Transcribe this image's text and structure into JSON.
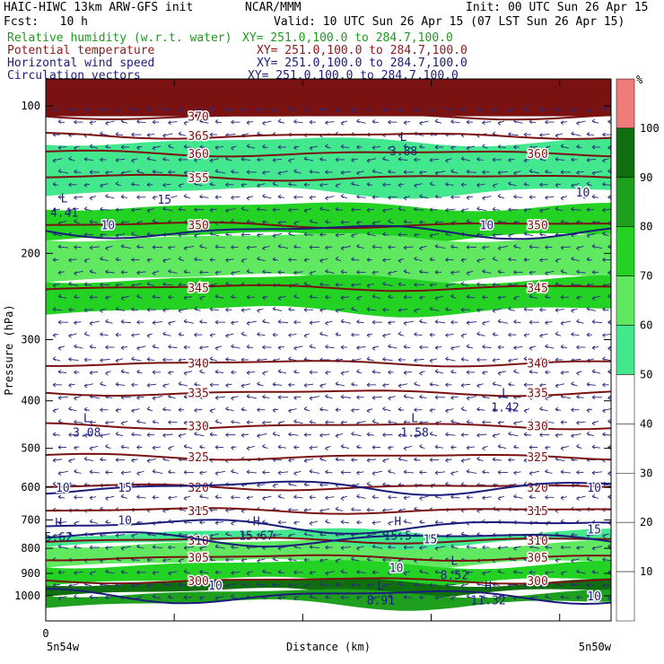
{
  "header": {
    "model": "HAIC-HIWC 13km ARW-GFS init",
    "org": "NCAR/MMM",
    "init": "Init: 00 UTC Sun 26 Apr 15",
    "fcst": "Fcst:   10 h",
    "valid": "Valid: 10 UTC Sun 26 Apr 15 (07 LST Sun 26 Apr 15)"
  },
  "fields": [
    {
      "name": "Relative humidity (w.r.t. water)",
      "xy": "XY= 251.0,100.0 to 284.7,100.0",
      "color": "#1f9a1f"
    },
    {
      "name": "Potential temperature",
      "xy": "XY= 251.0,100.0 to 284.7,100.0",
      "color": "#8b1a1a"
    },
    {
      "name": "Horizontal wind speed",
      "xy": "XY= 251.0,100.0 to 284.7,100.0",
      "color": "#1c1c7a"
    },
    {
      "name": "Circulation vectors",
      "xy": "XY= 251.0,100.0 to 284.7,100.0",
      "color": "#1c1c7a"
    }
  ],
  "chart_data": {
    "type": "cross-section",
    "ylabel": "Pressure (hPa)",
    "xlabel": "Distance (km)",
    "x_start_tick": "0",
    "x_left_label": "5n54w",
    "x_right_label": "5n50w",
    "y_ticks": [
      100,
      200,
      300,
      400,
      500,
      600,
      700,
      800,
      900,
      1000
    ],
    "y_log": true,
    "colorbar": {
      "unit": "%",
      "levels": [
        10,
        20,
        30,
        40,
        50,
        60,
        70,
        80,
        90,
        100
      ],
      "colors": [
        "#ffffff",
        "#ffffff",
        "#ffffff",
        "#ffffff",
        "#ffffff",
        "#43e88e",
        "#61e861",
        "#23d223",
        "#1ea01e",
        "#0f6f0f",
        "#f07b7b"
      ]
    },
    "theta_contours": [
      {
        "value": 300,
        "p": 930,
        "labels": [
          "300",
          "300"
        ]
      },
      {
        "value": 305,
        "p": 835,
        "labels": [
          "305",
          "305"
        ]
      },
      {
        "value": 310,
        "p": 770,
        "labels": [
          "310",
          "310"
        ]
      },
      {
        "value": 315,
        "p": 670,
        "labels": [
          "315",
          "315"
        ]
      },
      {
        "value": 320,
        "p": 600,
        "labels": [
          "320",
          "320"
        ]
      },
      {
        "value": 325,
        "p": 520,
        "labels": [
          "325",
          "325"
        ]
      },
      {
        "value": 330,
        "p": 450,
        "labels": [
          "330",
          "330"
        ]
      },
      {
        "value": 335,
        "p": 385,
        "labels": [
          "335",
          "335"
        ]
      },
      {
        "value": 340,
        "p": 335,
        "labels": [
          "340",
          "340"
        ]
      },
      {
        "value": 345,
        "p": 235,
        "labels": [
          "345",
          "345"
        ]
      },
      {
        "value": 350,
        "p": 175,
        "labels": [
          "350",
          "350"
        ]
      },
      {
        "value": 355,
        "p": 140,
        "labels": [
          "355"
        ]
      },
      {
        "value": 360,
        "p": 125,
        "labels": [
          "360",
          "360"
        ]
      },
      {
        "value": 365,
        "p": 115,
        "labels": [
          "365"
        ]
      },
      {
        "value": 370,
        "p": 105,
        "labels": [
          "370"
        ]
      }
    ],
    "wind_contour_labels": [
      "10",
      "15",
      "10",
      "10",
      "15",
      "15",
      "10",
      "10",
      "10",
      "10",
      "15",
      "10",
      "10"
    ],
    "extrema": [
      {
        "type": "L",
        "value": "3.08"
      },
      {
        "type": "L",
        "value": "1.58"
      },
      {
        "type": "L",
        "value": "1.42"
      },
      {
        "type": "H",
        "value": "5.62"
      },
      {
        "type": "H",
        "value": "15.67"
      },
      {
        "type": "H",
        "value": "15.5"
      },
      {
        "type": "L",
        "value": "8.52"
      },
      {
        "type": "L",
        "value": "8.91"
      },
      {
        "type": "H",
        "value": "11.32"
      },
      {
        "type": "L",
        "value": "4.41"
      },
      {
        "type": "L",
        "value": "3.88"
      }
    ]
  }
}
